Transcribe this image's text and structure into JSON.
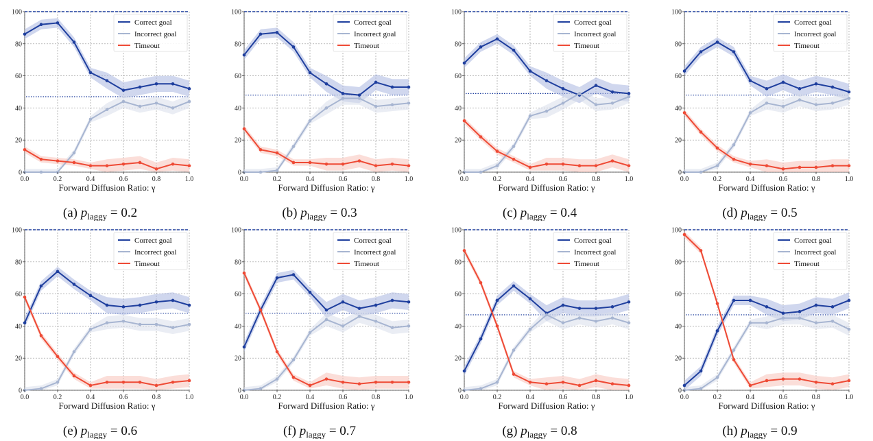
{
  "colors": {
    "correct": "#1f3f9e",
    "incorrect": "#a7b5d1",
    "timeout": "#ee4a35",
    "correct_band": "#aab6e0",
    "incorrect_band": "#d9deeb",
    "timeout_band": "#f7c2b9",
    "grid": "#9a9a9a",
    "ref_line": "#1f3f9e"
  },
  "chart_data": [
    {
      "type": "line",
      "caption": {
        "prefix": "(a) ",
        "var": "p",
        "sub": "laggy",
        "suffix": " = 0.2"
      },
      "xlabel": "Forward Diffusion Ratio: γ",
      "ylabel": "",
      "xlim": [
        0,
        1
      ],
      "ylim": [
        0,
        100
      ],
      "x_ticks": [
        "0.0",
        "0.2",
        "0.4",
        "0.6",
        "0.8",
        "1.0"
      ],
      "y_ticks": [
        "0",
        "20",
        "40",
        "60",
        "80",
        "100"
      ],
      "grid": true,
      "legend_position": "top-right",
      "x": [
        0.0,
        0.1,
        0.2,
        0.3,
        0.4,
        0.5,
        0.6,
        0.7,
        0.8,
        0.9,
        1.0
      ],
      "dotted_reference": 47,
      "series": [
        {
          "name": "Correct goal",
          "values": [
            86,
            92,
            93,
            81,
            62,
            57,
            51,
            53,
            55,
            55,
            52
          ]
        },
        {
          "name": "Incorrect goal",
          "values": [
            0,
            0,
            0,
            12,
            33,
            39,
            44,
            41,
            43,
            40,
            44
          ]
        },
        {
          "name": "Timeout",
          "values": [
            14,
            8,
            7,
            6,
            4,
            4,
            5,
            6,
            2,
            5,
            4
          ]
        }
      ]
    },
    {
      "type": "line",
      "caption": {
        "prefix": "(b) ",
        "var": "p",
        "sub": "laggy",
        "suffix": " = 0.3"
      },
      "xlabel": "Forward Diffusion Ratio: γ",
      "ylabel": "",
      "xlim": [
        0,
        1
      ],
      "ylim": [
        0,
        100
      ],
      "x_ticks": [
        "0.0",
        "0.2",
        "0.4",
        "0.6",
        "0.8",
        "1.0"
      ],
      "y_ticks": [
        "0",
        "20",
        "40",
        "60",
        "80",
        "100"
      ],
      "grid": true,
      "legend_position": "top-right",
      "x": [
        0.0,
        0.1,
        0.2,
        0.3,
        0.4,
        0.5,
        0.6,
        0.7,
        0.8,
        0.9,
        1.0
      ],
      "dotted_reference": 48,
      "series": [
        {
          "name": "Correct goal",
          "values": [
            73,
            86,
            87,
            78,
            62,
            55,
            49,
            48,
            56,
            53,
            53
          ]
        },
        {
          "name": "Incorrect goal",
          "values": [
            0,
            0,
            1,
            16,
            32,
            40,
            46,
            46,
            41,
            42,
            43
          ]
        },
        {
          "name": "Timeout",
          "values": [
            27,
            14,
            12,
            6,
            6,
            5,
            5,
            7,
            4,
            5,
            4
          ]
        }
      ]
    },
    {
      "type": "line",
      "caption": {
        "prefix": "(c) ",
        "var": "p",
        "sub": "laggy",
        "suffix": " = 0.4"
      },
      "xlabel": "Forward Diffusion Ratio: γ",
      "ylabel": "",
      "xlim": [
        0,
        1
      ],
      "ylim": [
        0,
        100
      ],
      "x_ticks": [
        "0.0",
        "0.2",
        "0.4",
        "0.6",
        "0.8",
        "1.0"
      ],
      "y_ticks": [
        "0",
        "20",
        "40",
        "60",
        "80",
        "100"
      ],
      "grid": true,
      "legend_position": "top-right",
      "x": [
        0.0,
        0.1,
        0.2,
        0.3,
        0.4,
        0.5,
        0.6,
        0.7,
        0.8,
        0.9,
        1.0
      ],
      "dotted_reference": 49,
      "series": [
        {
          "name": "Correct goal",
          "values": [
            68,
            78,
            83,
            76,
            63,
            57,
            52,
            48,
            54,
            50,
            49
          ]
        },
        {
          "name": "Incorrect goal",
          "values": [
            0,
            0,
            4,
            16,
            35,
            38,
            43,
            49,
            42,
            43,
            47
          ]
        },
        {
          "name": "Timeout",
          "values": [
            32,
            22,
            13,
            8,
            3,
            5,
            5,
            4,
            4,
            7,
            4
          ]
        }
      ]
    },
    {
      "type": "line",
      "caption": {
        "prefix": "(d) ",
        "var": "p",
        "sub": "laggy",
        "suffix": " = 0.5"
      },
      "xlabel": "Forward Diffusion Ratio: γ",
      "ylabel": "",
      "xlim": [
        0,
        1
      ],
      "ylim": [
        0,
        100
      ],
      "x_ticks": [
        "0.0",
        "0.2",
        "0.4",
        "0.6",
        "0.8",
        "1.0"
      ],
      "y_ticks": [
        "0",
        "20",
        "40",
        "60",
        "80",
        "100"
      ],
      "grid": true,
      "legend_position": "top-right",
      "x": [
        0.0,
        0.1,
        0.2,
        0.3,
        0.4,
        0.5,
        0.6,
        0.7,
        0.8,
        0.9,
        1.0
      ],
      "dotted_reference": 48,
      "series": [
        {
          "name": "Correct goal",
          "values": [
            63,
            75,
            81,
            75,
            57,
            52,
            56,
            52,
            55,
            53,
            50
          ]
        },
        {
          "name": "Incorrect goal",
          "values": [
            0,
            0,
            4,
            17,
            37,
            43,
            41,
            45,
            42,
            43,
            46
          ]
        },
        {
          "name": "Timeout",
          "values": [
            37,
            25,
            15,
            8,
            5,
            4,
            2,
            3,
            3,
            4,
            4
          ]
        }
      ]
    },
    {
      "type": "line",
      "caption": {
        "prefix": "(e) ",
        "var": "p",
        "sub": "laggy",
        "suffix": " = 0.6"
      },
      "xlabel": "Forward Diffusion Ratio: γ",
      "ylabel": "",
      "xlim": [
        0,
        1
      ],
      "ylim": [
        0,
        100
      ],
      "x_ticks": [
        "0.0",
        "0.2",
        "0.4",
        "0.6",
        "0.8",
        "1.0"
      ],
      "y_ticks": [
        "0",
        "20",
        "40",
        "60",
        "80",
        "100"
      ],
      "grid": true,
      "legend_position": "top-right",
      "x": [
        0.0,
        0.1,
        0.2,
        0.3,
        0.4,
        0.5,
        0.6,
        0.7,
        0.8,
        0.9,
        1.0
      ],
      "dotted_reference": 48,
      "series": [
        {
          "name": "Correct goal",
          "values": [
            42,
            65,
            74,
            66,
            59,
            53,
            52,
            53,
            55,
            56,
            53
          ]
        },
        {
          "name": "Incorrect goal",
          "values": [
            0,
            1,
            5,
            24,
            38,
            42,
            43,
            41,
            41,
            39,
            41
          ]
        },
        {
          "name": "Timeout",
          "values": [
            58,
            34,
            21,
            9,
            3,
            5,
            5,
            5,
            3,
            5,
            6
          ]
        }
      ]
    },
    {
      "type": "line",
      "caption": {
        "prefix": "(f) ",
        "var": "p",
        "sub": "laggy",
        "suffix": " = 0.7"
      },
      "xlabel": "Forward Diffusion Ratio: γ",
      "ylabel": "",
      "xlim": [
        0,
        1
      ],
      "ylim": [
        0,
        100
      ],
      "x_ticks": [
        "0.0",
        "0.2",
        "0.4",
        "0.6",
        "0.8",
        "1.0"
      ],
      "y_ticks": [
        "0",
        "20",
        "40",
        "60",
        "80",
        "100"
      ],
      "grid": true,
      "legend_position": "top-right",
      "x": [
        0.0,
        0.1,
        0.2,
        0.3,
        0.4,
        0.5,
        0.6,
        0.7,
        0.8,
        0.9,
        1.0
      ],
      "dotted_reference": 48,
      "series": [
        {
          "name": "Correct goal",
          "values": [
            27,
            50,
            70,
            72,
            61,
            50,
            55,
            51,
            53,
            56,
            55
          ]
        },
        {
          "name": "Incorrect goal",
          "values": [
            0,
            1,
            7,
            19,
            36,
            44,
            40,
            46,
            43,
            39,
            40
          ]
        },
        {
          "name": "Timeout",
          "values": [
            73,
            50,
            24,
            8,
            3,
            7,
            5,
            4,
            5,
            5,
            5
          ]
        }
      ]
    },
    {
      "type": "line",
      "caption": {
        "prefix": "(g) ",
        "var": "p",
        "sub": "laggy",
        "suffix": " = 0.8"
      },
      "xlabel": "Forward Diffusion Ratio: γ",
      "ylabel": "",
      "xlim": [
        0,
        1
      ],
      "ylim": [
        0,
        100
      ],
      "x_ticks": [
        "0.0",
        "0.2",
        "0.4",
        "0.6",
        "0.8",
        "1.0"
      ],
      "y_ticks": [
        "0",
        "20",
        "40",
        "60",
        "80",
        "100"
      ],
      "grid": true,
      "legend_position": "top-right",
      "x": [
        0.0,
        0.1,
        0.2,
        0.3,
        0.4,
        0.5,
        0.6,
        0.7,
        0.8,
        0.9,
        1.0
      ],
      "dotted_reference": 47,
      "series": [
        {
          "name": "Correct goal",
          "values": [
            12,
            32,
            56,
            65,
            57,
            48,
            53,
            51,
            51,
            52,
            55
          ]
        },
        {
          "name": "Incorrect goal",
          "values": [
            0,
            1,
            5,
            25,
            38,
            47,
            42,
            45,
            43,
            45,
            42
          ]
        },
        {
          "name": "Timeout",
          "values": [
            87,
            67,
            40,
            10,
            5,
            4,
            5,
            3,
            6,
            4,
            3
          ]
        }
      ]
    },
    {
      "type": "line",
      "caption": {
        "prefix": "(h) ",
        "var": "p",
        "sub": "laggy",
        "suffix": " = 0.9"
      },
      "xlabel": "Forward Diffusion Ratio: γ",
      "ylabel": "",
      "xlim": [
        0,
        1
      ],
      "ylim": [
        0,
        100
      ],
      "x_ticks": [
        "0.0",
        "0.2",
        "0.4",
        "0.6",
        "0.8",
        "1.0"
      ],
      "y_ticks": [
        "0",
        "20",
        "40",
        "60",
        "80",
        "100"
      ],
      "grid": true,
      "legend_position": "top-right",
      "x": [
        0.0,
        0.1,
        0.2,
        0.3,
        0.4,
        0.5,
        0.6,
        0.7,
        0.8,
        0.9,
        1.0
      ],
      "dotted_reference": 47,
      "series": [
        {
          "name": "Correct goal",
          "values": [
            3,
            12,
            37,
            56,
            56,
            52,
            48,
            49,
            53,
            52,
            56
          ]
        },
        {
          "name": "Incorrect goal",
          "values": [
            0,
            1,
            8,
            25,
            42,
            42,
            45,
            45,
            42,
            43,
            38
          ]
        },
        {
          "name": "Timeout",
          "values": [
            97,
            87,
            54,
            19,
            3,
            6,
            7,
            7,
            5,
            4,
            6
          ]
        }
      ]
    }
  ]
}
